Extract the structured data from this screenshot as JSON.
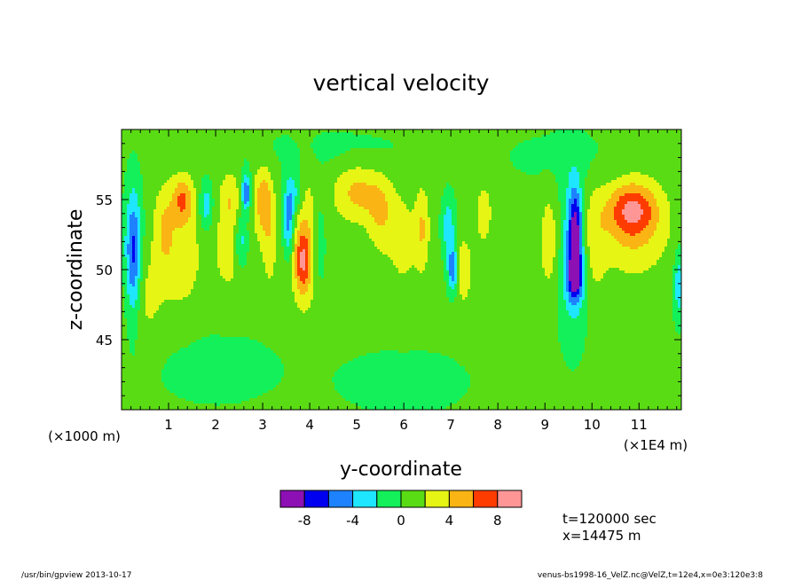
{
  "chart_data": {
    "type": "heatmap",
    "title": "vertical velocity",
    "xlabel": "y-coordinate",
    "ylabel": "z-coordinate",
    "x_units_label": "(×1000 m)",
    "x_multiplier_label": "(×1E4 m)",
    "xlim": [
      0,
      11.9
    ],
    "ylim": [
      40,
      60
    ],
    "x_ticks": [
      1,
      2,
      3,
      4,
      5,
      6,
      7,
      8,
      9,
      10,
      11
    ],
    "y_ticks": [
      45,
      50,
      55
    ],
    "colorbar": {
      "levels": [
        -10,
        -8,
        -6,
        -4,
        -2,
        0,
        2,
        4,
        6,
        8,
        10
      ],
      "tick_labels": [
        "-8",
        "-4",
        "0",
        "4",
        "8"
      ],
      "colors": [
        "#8c10b4",
        "#0000f0",
        "#1e82ff",
        "#1ee6ff",
        "#14f05a",
        "#5adc14",
        "#e6f514",
        "#fab414",
        "#ff3c00",
        "#ff9696"
      ]
    },
    "background_value": 0.5,
    "features": [
      {
        "y": 0.25,
        "z": 51.0,
        "sy": 0.12,
        "sz": 3.2,
        "amp": -7.5
      },
      {
        "y": 0.5,
        "z": 48.0,
        "sy": 0.3,
        "sz": 2.5,
        "amp": 2.0
      },
      {
        "y": 0.9,
        "z": 53.0,
        "sy": 0.16,
        "sz": 2.2,
        "amp": 3.0
      },
      {
        "y": 1.3,
        "z": 55.0,
        "sy": 0.16,
        "sz": 1.2,
        "amp": 5.0
      },
      {
        "y": 1.3,
        "z": 51.0,
        "sy": 0.3,
        "sz": 3.0,
        "amp": 2.5
      },
      {
        "y": 1.8,
        "z": 54.5,
        "sy": 0.1,
        "sz": 1.2,
        "amp": -4.0
      },
      {
        "y": 2.3,
        "z": 55.0,
        "sy": 0.16,
        "sz": 1.5,
        "amp": 3.0
      },
      {
        "y": 2.3,
        "z": 51.0,
        "sy": 0.3,
        "sz": 2.5,
        "amp": 2.0
      },
      {
        "y": 2.65,
        "z": 55.5,
        "sy": 0.07,
        "sz": 0.9,
        "amp": -7.0
      },
      {
        "y": 2.55,
        "z": 52.0,
        "sy": 0.1,
        "sz": 1.5,
        "amp": -4.0
      },
      {
        "y": 3.0,
        "z": 55.0,
        "sy": 0.14,
        "sz": 1.8,
        "amp": 4.5
      },
      {
        "y": 3.15,
        "z": 52.0,
        "sy": 0.12,
        "sz": 2.5,
        "amp": 2.5
      },
      {
        "y": 3.55,
        "z": 53.5,
        "sy": 0.08,
        "sz": 1.8,
        "amp": -6.0
      },
      {
        "y": 3.7,
        "z": 55.5,
        "sy": 0.12,
        "sz": 1.2,
        "amp": -3.5
      },
      {
        "y": 3.9,
        "z": 52.0,
        "sy": 0.22,
        "sz": 3.5,
        "amp": 3.5
      },
      {
        "y": 3.85,
        "z": 50.5,
        "sy": 0.12,
        "sz": 1.5,
        "amp": 5.0
      },
      {
        "y": 4.2,
        "z": 52.0,
        "sy": 0.1,
        "sz": 2.5,
        "amp": -2.5
      },
      {
        "y": 5.0,
        "z": 55.5,
        "sy": 0.35,
        "sz": 1.5,
        "amp": 4.0
      },
      {
        "y": 5.5,
        "z": 54.0,
        "sy": 0.2,
        "sz": 1.8,
        "amp": 3.0
      },
      {
        "y": 6.0,
        "z": 52.0,
        "sy": 0.3,
        "sz": 3.0,
        "amp": 2.0
      },
      {
        "y": 6.4,
        "z": 53.0,
        "sy": 0.1,
        "sz": 2.0,
        "amp": 3.0
      },
      {
        "y": 6.95,
        "z": 53.0,
        "sy": 0.1,
        "sz": 1.5,
        "amp": -4.0
      },
      {
        "y": 7.05,
        "z": 50.0,
        "sy": 0.08,
        "sz": 1.2,
        "amp": -7.0
      },
      {
        "y": 7.25,
        "z": 50.0,
        "sy": 0.15,
        "sz": 1.8,
        "amp": 3.0
      },
      {
        "y": 7.7,
        "z": 54.0,
        "sy": 0.12,
        "sz": 1.5,
        "amp": 3.0
      },
      {
        "y": 9.1,
        "z": 52.0,
        "sy": 0.15,
        "sz": 2.5,
        "amp": 3.0
      },
      {
        "y": 9.65,
        "z": 53.0,
        "sy": 0.1,
        "sz": 2.0,
        "amp": -7.5
      },
      {
        "y": 9.65,
        "z": 49.5,
        "sy": 0.12,
        "sz": 1.2,
        "amp": -8.0
      },
      {
        "y": 9.6,
        "z": 51.0,
        "sy": 0.22,
        "sz": 4.0,
        "amp": -4.0
      },
      {
        "y": 10.0,
        "z": 52.0,
        "sy": 0.2,
        "sz": 3.0,
        "amp": 2.5
      },
      {
        "y": 10.85,
        "z": 54.3,
        "sy": 0.35,
        "sz": 1.3,
        "amp": 5.5
      },
      {
        "y": 10.9,
        "z": 53.0,
        "sy": 0.55,
        "sz": 2.5,
        "amp": 3.5
      },
      {
        "y": 11.85,
        "z": 49.0,
        "sy": 0.08,
        "sz": 1.8,
        "amp": -4.0
      },
      {
        "y": 2.0,
        "z": 43.0,
        "sy": 1.0,
        "sz": 2.0,
        "amp": -1.2
      },
      {
        "y": 6.0,
        "z": 42.0,
        "sy": 1.2,
        "sz": 2.0,
        "amp": -1.0
      },
      {
        "y": 9.5,
        "z": 58.0,
        "sy": 1.0,
        "sz": 1.5,
        "amp": -1.0
      },
      {
        "y": 4.5,
        "z": 58.5,
        "sy": 1.5,
        "sz": 1.2,
        "amp": -1.0
      }
    ]
  },
  "info": {
    "time_label": "t=120000 sec",
    "position_label": "x=14475 m"
  },
  "footer": {
    "left": "/usr/bin/gpview   2013-10-17",
    "right": "venus-bs1998-16_VelZ.nc@VelZ,t=12e4,x=0e3:120e3:8"
  }
}
